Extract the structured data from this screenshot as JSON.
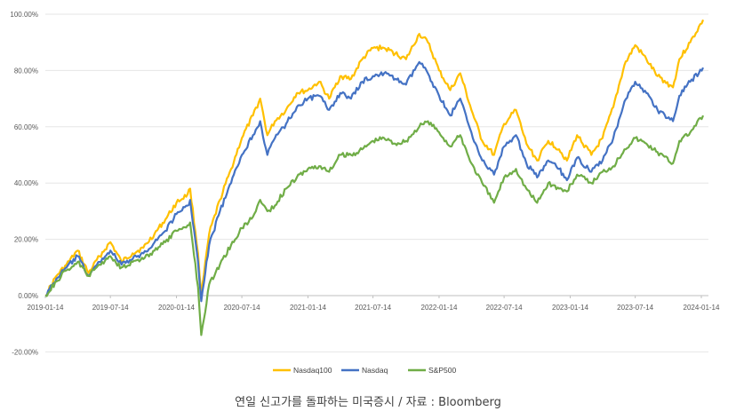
{
  "caption": "연일 신고가를 돌파하는 미국증시 / 자료 : Bloomberg",
  "chart_data": {
    "type": "line",
    "x_dates": [
      "2019-01-14",
      "2019-02-14",
      "2019-03-14",
      "2019-04-14",
      "2019-05-14",
      "2019-06-14",
      "2019-07-14",
      "2019-08-14",
      "2019-09-14",
      "2019-10-14",
      "2019-11-14",
      "2019-12-14",
      "2020-01-14",
      "2020-02-14",
      "2020-02-21",
      "2020-03-14",
      "2020-03-23",
      "2020-04-14",
      "2020-05-14",
      "2020-06-14",
      "2020-07-14",
      "2020-08-14",
      "2020-09-03",
      "2020-09-23",
      "2020-10-14",
      "2020-11-14",
      "2020-12-14",
      "2021-01-14",
      "2021-02-14",
      "2021-03-14",
      "2021-04-14",
      "2021-05-14",
      "2021-06-14",
      "2021-07-14",
      "2021-08-14",
      "2021-09-14",
      "2021-10-14",
      "2021-11-20",
      "2021-12-14",
      "2022-01-14",
      "2022-02-14",
      "2022-03-14",
      "2022-04-14",
      "2022-05-14",
      "2022-06-16",
      "2022-07-14",
      "2022-08-16",
      "2022-09-14",
      "2022-10-14",
      "2022-11-14",
      "2022-12-14",
      "2023-01-05",
      "2023-02-02",
      "2023-03-14",
      "2023-04-14",
      "2023-05-14",
      "2023-06-14",
      "2023-07-14",
      "2023-08-14",
      "2023-09-14",
      "2023-10-27",
      "2023-11-14",
      "2023-12-14",
      "2024-01-19"
    ],
    "series": [
      {
        "name": "Nasdaq100",
        "color": "#FFC000",
        "values": [
          0,
          7,
          11,
          16,
          8,
          14,
          19,
          12,
          15,
          17,
          22,
          27,
          33,
          36,
          38,
          15,
          0,
          22,
          34,
          45,
          56,
          64,
          70,
          57,
          62,
          66,
          72,
          73,
          76,
          70,
          78,
          77,
          84,
          88,
          88,
          86,
          84,
          93,
          90,
          80,
          73,
          79,
          66,
          55,
          50,
          61,
          66,
          54,
          48,
          55,
          52,
          48,
          57,
          50,
          56,
          67,
          82,
          89,
          84,
          78,
          74,
          84,
          90,
          98
        ]
      },
      {
        "name": "Nasdaq",
        "color": "#4472C4",
        "values": [
          0,
          6,
          10,
          14,
          7,
          12,
          16,
          11,
          13,
          15,
          19,
          23,
          29,
          32,
          34,
          12,
          -2,
          18,
          30,
          40,
          50,
          57,
          62,
          50,
          56,
          61,
          67,
          70,
          71,
          66,
          72,
          70,
          76,
          78,
          79,
          77,
          75,
          83,
          79,
          71,
          64,
          70,
          58,
          48,
          43,
          53,
          57,
          47,
          42,
          48,
          45,
          41,
          49,
          44,
          48,
          56,
          69,
          76,
          72,
          66,
          62,
          71,
          76,
          81
        ]
      },
      {
        "name": "S&P500",
        "color": "#70AD47",
        "values": [
          0,
          5,
          9,
          12,
          7,
          11,
          14,
          10,
          12,
          13,
          16,
          19,
          23,
          25,
          26,
          3,
          -14,
          4,
          11,
          18,
          24,
          28,
          34,
          30,
          32,
          38,
          42,
          45,
          46,
          44,
          50,
          50,
          52,
          55,
          56,
          54,
          55,
          60,
          62,
          58,
          53,
          57,
          47,
          40,
          33,
          42,
          45,
          38,
          33,
          40,
          38,
          37,
          43,
          40,
          44,
          46,
          52,
          56,
          54,
          51,
          47,
          55,
          58,
          64
        ]
      }
    ],
    "xticks": [
      "2019-01-14",
      "2019-07-14",
      "2020-01-14",
      "2020-07-14",
      "2021-01-14",
      "2021-07-14",
      "2022-01-14",
      "2022-07-14",
      "2023-01-14",
      "2023-07-14",
      "2024-01-14"
    ],
    "yticks": [
      "100.00%",
      "80.00%",
      "60.00%",
      "40.00%",
      "20.00%",
      "0.00%",
      "-20.00%"
    ],
    "ylim": [
      -20,
      100
    ],
    "y_unit": "%",
    "grid": "horizontal",
    "legend_position": "bottom"
  }
}
